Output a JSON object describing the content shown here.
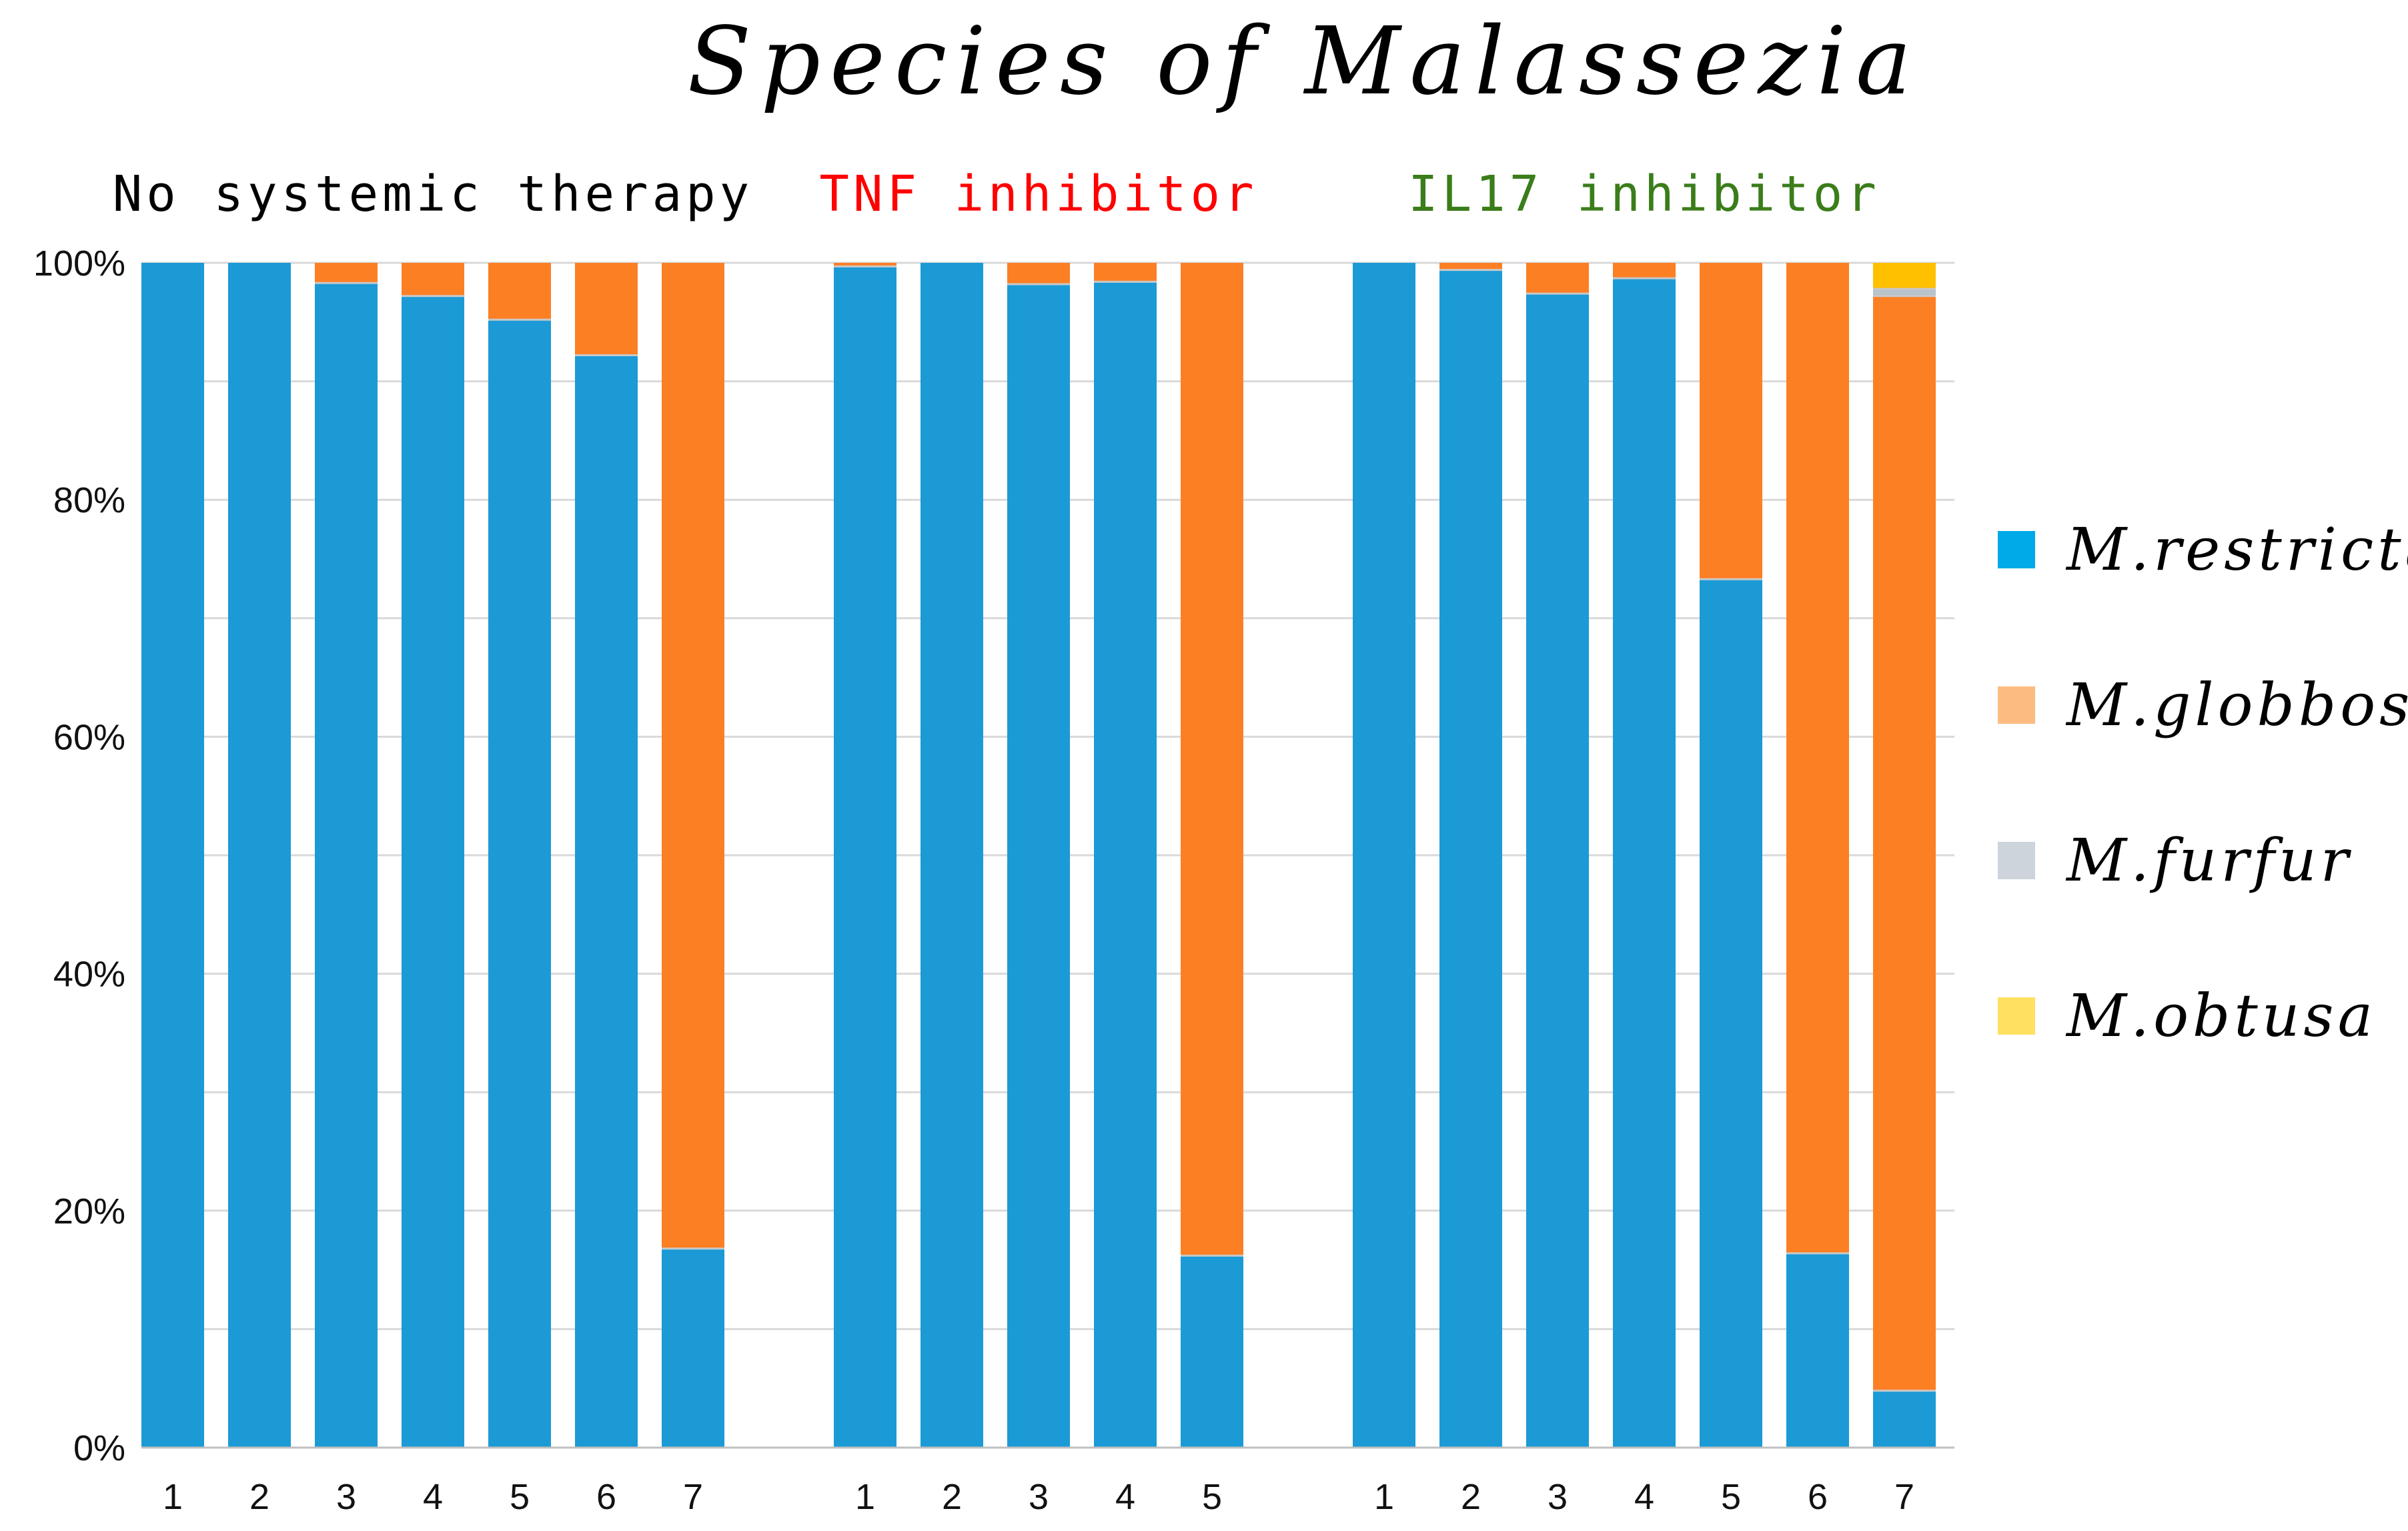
{
  "chart_data": {
    "type": "bar",
    "stacked": true,
    "percent": true,
    "title": "Species of Malassezia",
    "ylim": [
      0,
      100
    ],
    "yticks": [
      "0%",
      "20%",
      "40%",
      "60%",
      "80%",
      "100%"
    ],
    "grid": true,
    "legend_position": "right",
    "groups": [
      {
        "name": "No systemic therapy",
        "color": "#000000",
        "categories": [
          "1",
          "2",
          "3",
          "4",
          "5",
          "6",
          "7"
        ]
      },
      {
        "name": "TNF inhibitor",
        "color": "#ff0000",
        "categories": [
          "1",
          "2",
          "3",
          "4",
          "5"
        ]
      },
      {
        "name": "IL17 inhibitor",
        "color": "#3a7d1a",
        "categories": [
          "1",
          "2",
          "3",
          "4",
          "5",
          "6",
          "7"
        ]
      }
    ],
    "series": [
      {
        "name": "M.restricta",
        "color": "#1b9ad6",
        "legend_color": "#00a9e8",
        "values": [
          [
            100,
            100,
            98.3,
            97.2,
            95.2,
            92.2,
            16.8
          ],
          [
            99.7,
            100,
            98.2,
            98.4,
            16.2
          ],
          [
            100,
            99.4,
            97.4,
            98.7,
            73.3,
            16.4,
            4.8
          ]
        ]
      },
      {
        "name": "M.globbosa",
        "color": "#fd7f24",
        "legend_color": "#fcbc80",
        "values": [
          [
            0,
            0,
            1.7,
            2.8,
            4.8,
            7.8,
            83.2
          ],
          [
            0.3,
            0,
            1.8,
            1.6,
            83.8
          ],
          [
            0,
            0.6,
            2.6,
            1.3,
            26.7,
            83.6,
            92.4
          ]
        ]
      },
      {
        "name": "M.furfur",
        "color": "#b9c3cc",
        "legend_color": "#cdd4db",
        "values": [
          [
            0,
            0,
            0,
            0,
            0,
            0,
            0
          ],
          [
            0,
            0,
            0,
            0,
            0
          ],
          [
            0,
            0,
            0,
            0,
            0,
            0,
            0.6
          ]
        ]
      },
      {
        "name": "M.obtusa",
        "color": "#ffc000",
        "legend_color": "#ffe060",
        "values": [
          [
            0,
            0,
            0,
            0,
            0,
            0,
            0
          ],
          [
            0,
            0,
            0,
            0,
            0
          ],
          [
            0,
            0,
            0,
            0,
            0,
            0,
            2.2
          ]
        ]
      }
    ]
  }
}
